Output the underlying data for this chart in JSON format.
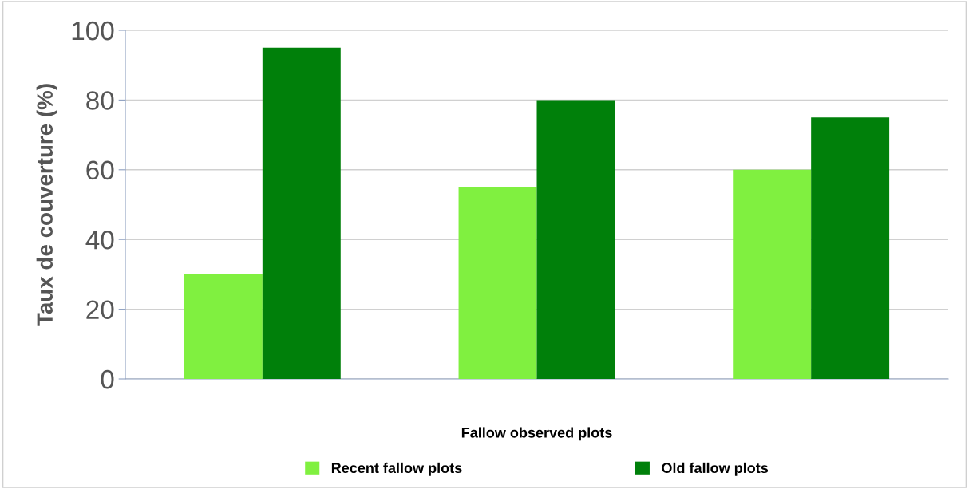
{
  "chart_data": {
    "type": "bar",
    "xlabel": "Fallow observed plots",
    "ylabel": "Taux de couverture (%)",
    "categories": [
      null,
      null,
      null
    ],
    "series": [
      {
        "name": "Recent fallow plots",
        "color": "#80f040",
        "values": [
          30,
          55,
          60
        ]
      },
      {
        "name": "Old fallow plots",
        "color": "#00800a",
        "values": [
          95,
          80,
          75
        ]
      }
    ],
    "ylim": [
      0,
      100
    ],
    "yticks": [
      0,
      20,
      40,
      60,
      80,
      100
    ],
    "grid": "y",
    "legend": "bottom"
  }
}
